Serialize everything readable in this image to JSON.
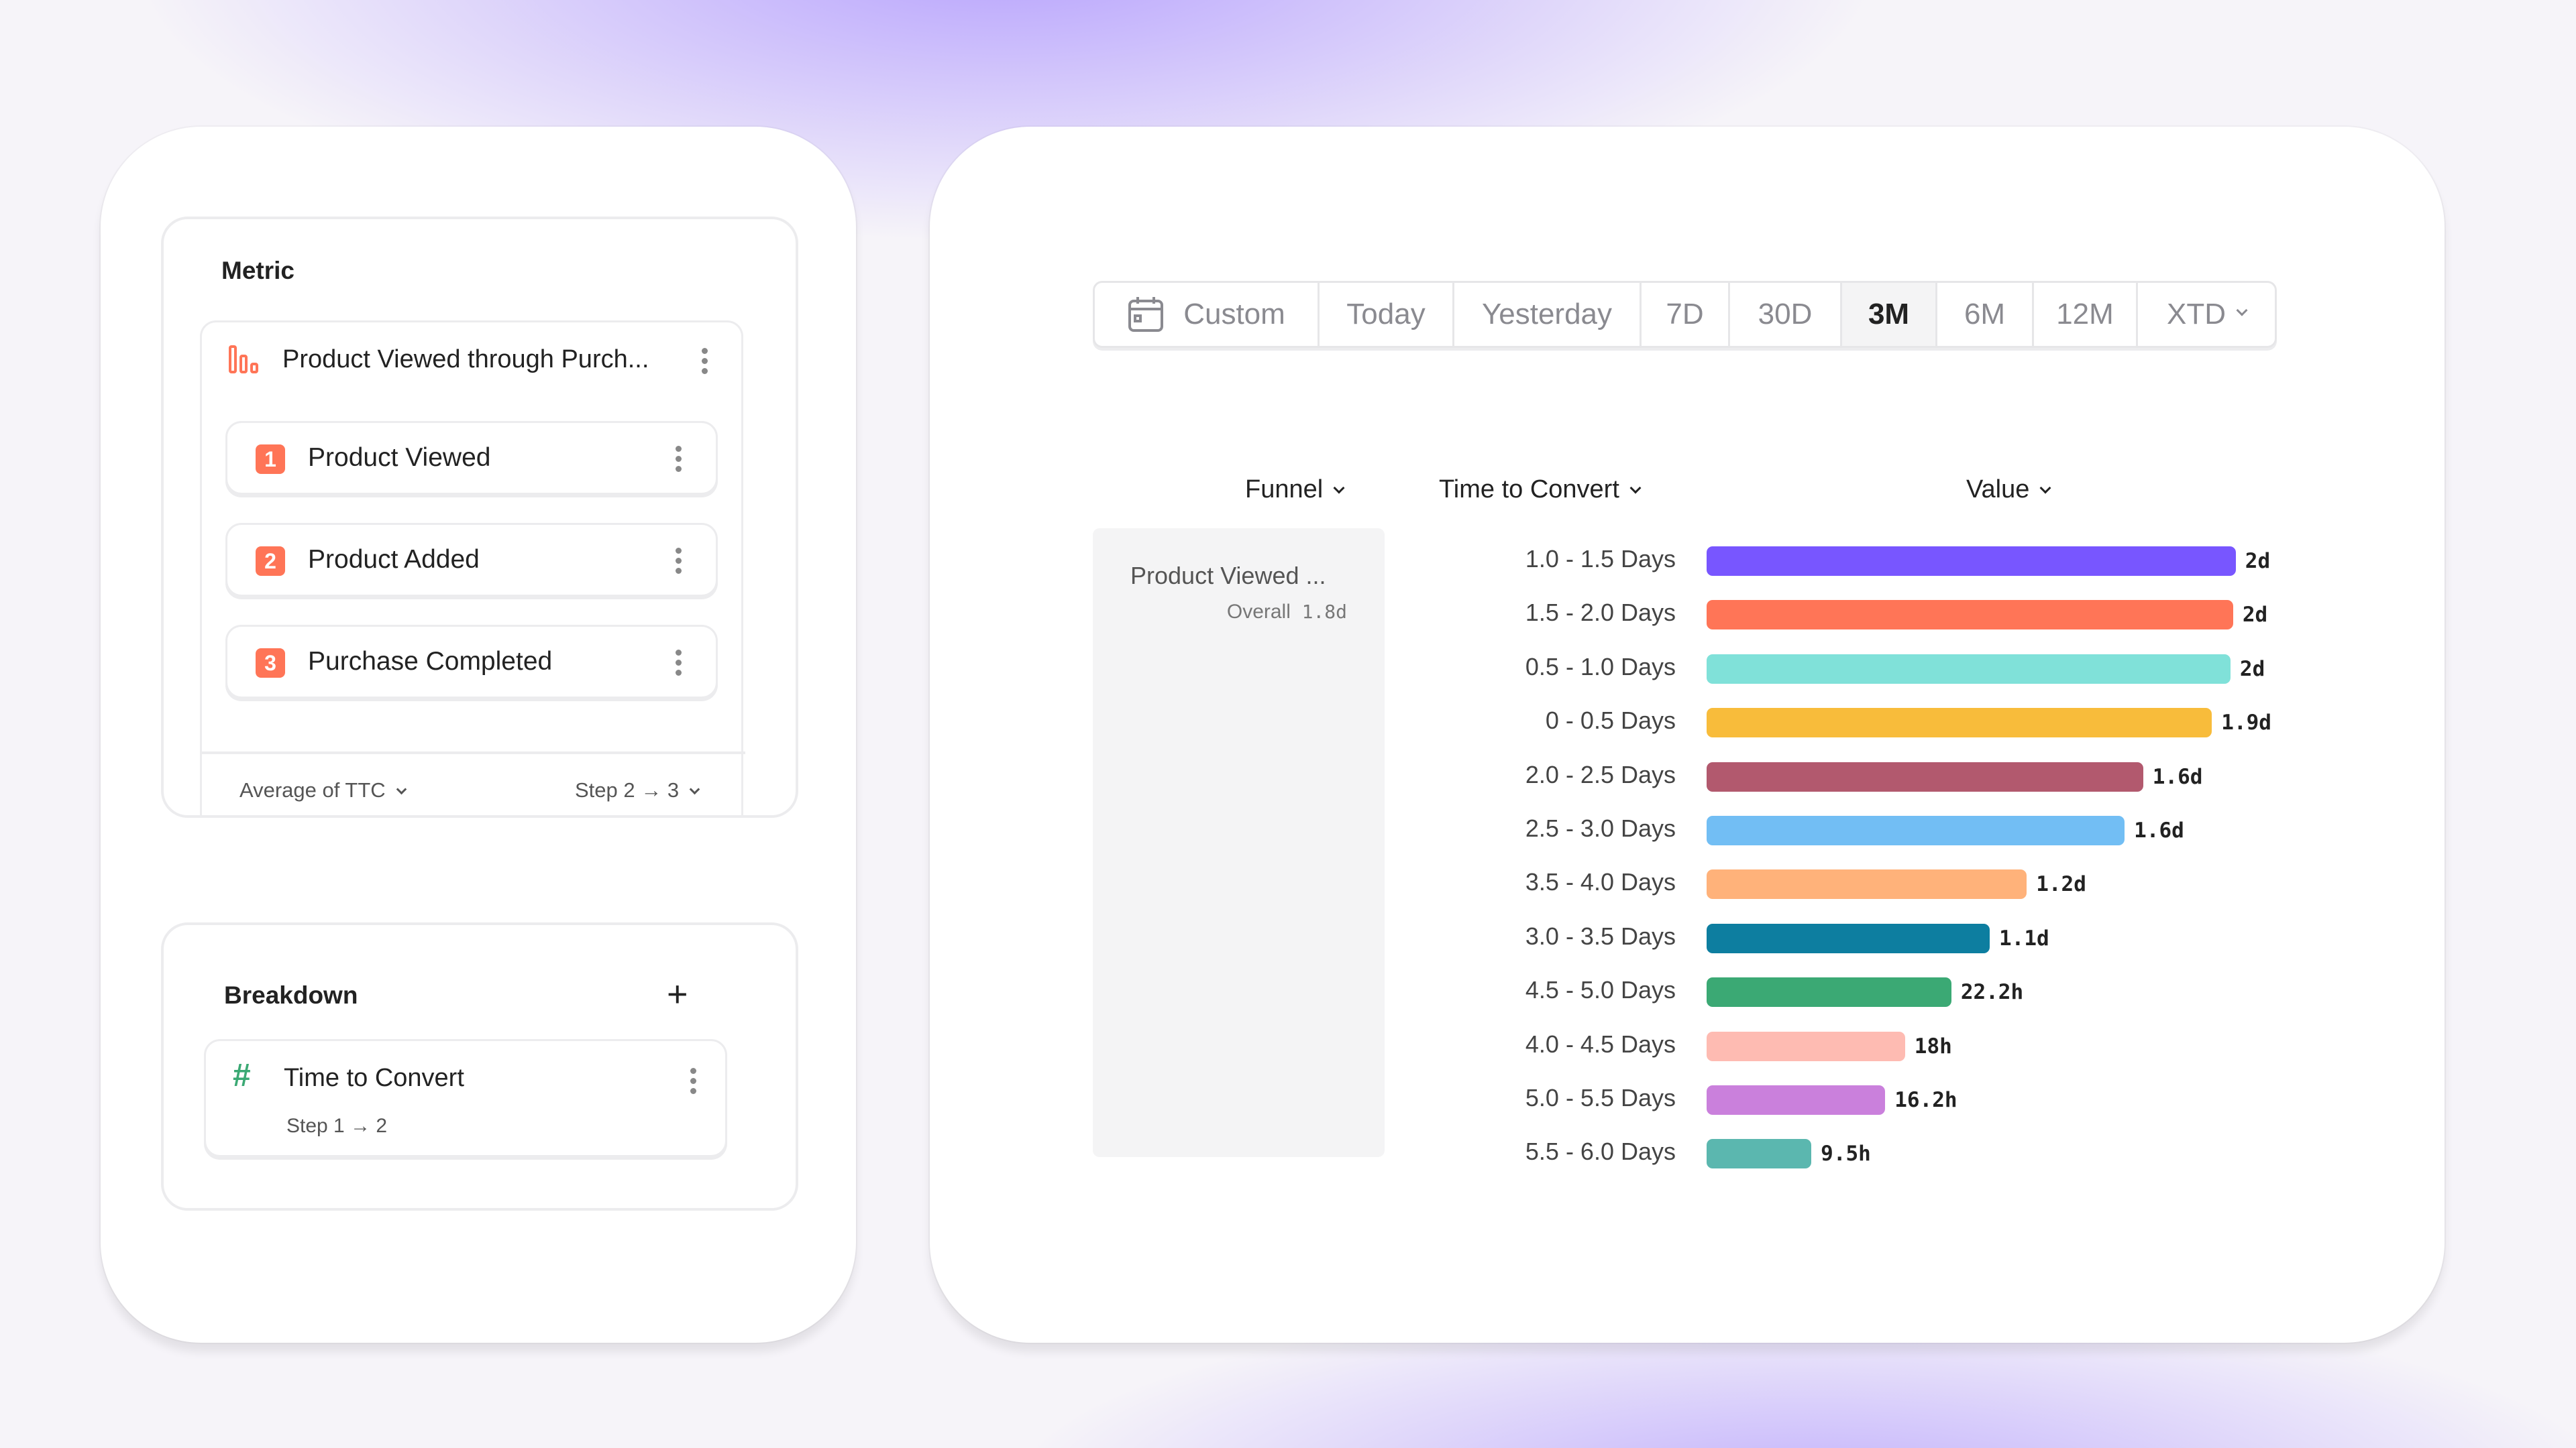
{
  "metric": {
    "title": "Metric",
    "report_name": "Product Viewed through Purch...",
    "report_icon": "funnel-bars-icon",
    "steps": [
      {
        "num": "1",
        "label": "Product Viewed"
      },
      {
        "num": "2",
        "label": "Product Added"
      },
      {
        "num": "3",
        "label": "Purchase Completed"
      }
    ],
    "aggregation": "Average of TTC",
    "step_range": "Step 2 → 3",
    "accent": "#FF7557"
  },
  "breakdown": {
    "title": "Breakdown",
    "item": {
      "label": "Time to Convert",
      "sub": "Step 1 → 2",
      "icon": "hash-icon",
      "icon_color": "#3BA974"
    }
  },
  "date_range": {
    "options": [
      "Custom",
      "Today",
      "Yesterday",
      "7D",
      "30D",
      "3M",
      "6M",
      "12M",
      "XTD"
    ],
    "selected": "3M"
  },
  "table": {
    "headers": {
      "funnel": "Funnel",
      "ttc": "Time to Convert",
      "value": "Value"
    },
    "funnel_name": "Product Viewed ...",
    "overall_label": "Overall",
    "overall_value": "1.8d"
  },
  "chart_data": {
    "type": "bar",
    "orientation": "horizontal",
    "unit": "days",
    "categories": [
      "1.0 - 1.5 Days",
      "1.5 - 2.0 Days",
      "0.5 - 1.0 Days",
      "0 - 0.5 Days",
      "2.0 - 2.5 Days",
      "2.5 - 3.0 Days",
      "3.5 - 4.0 Days",
      "3.0 - 3.5 Days",
      "4.5 - 5.0 Days",
      "4.0 - 4.5 Days",
      "5.0 - 5.5 Days",
      "5.5 - 6.0 Days"
    ],
    "values": [
      2.0,
      1.99,
      1.98,
      1.91,
      1.65,
      1.58,
      1.21,
      1.07,
      0.925,
      0.75,
      0.675,
      0.396
    ],
    "labels": [
      "2d",
      "2d",
      "2d",
      "1.9d",
      "1.6d",
      "1.6d",
      "1.2d",
      "1.1d",
      "22.2h",
      "18h",
      "16.2h",
      "9.5h"
    ],
    "colors": [
      "#7856FF",
      "#FF7557",
      "#80E1D9",
      "#F8BC3B",
      "#B2596E",
      "#72BEF4",
      "#FFB27A",
      "#0D7EA0",
      "#3BA974",
      "#FEBBB2",
      "#CA80DC",
      "#5BB7AF"
    ]
  }
}
